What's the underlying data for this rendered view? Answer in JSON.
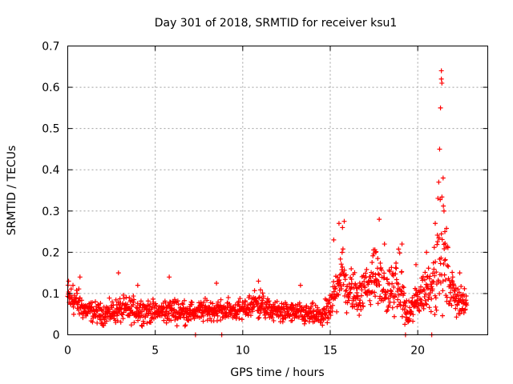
{
  "chart_data": {
    "type": "scatter",
    "title": "Day 301 of 2018, SRMTID for receiver ksu1",
    "xlabel": "GPS time / hours",
    "ylabel": "SRMTID / TECUs",
    "xlim": [
      0,
      24
    ],
    "ylim": [
      0,
      0.7
    ],
    "xticks": [
      0,
      5,
      10,
      15,
      20
    ],
    "yticks": [
      0,
      0.1,
      0.2,
      0.3,
      0.4,
      0.5,
      0.6,
      0.7
    ],
    "xtick_labels": [
      "0",
      "5",
      "10",
      "15",
      "20"
    ],
    "ytick_labels": [
      "0",
      "0.1",
      "0.2",
      "0.3",
      "0.4",
      "0.5",
      "0.6",
      "0.7"
    ],
    "grid": true,
    "marker": "+",
    "colors": {
      "series": "#ff0000",
      "grid": "#a0a0a0",
      "axis": "#000000"
    },
    "series": [
      {
        "name": "SRMTID",
        "profile": [
          [
            0.0,
            0.09,
            0.03
          ],
          [
            0.5,
            0.08,
            0.03
          ],
          [
            1.0,
            0.06,
            0.02
          ],
          [
            2.0,
            0.05,
            0.02
          ],
          [
            3.0,
            0.06,
            0.025
          ],
          [
            4.0,
            0.06,
            0.025
          ],
          [
            5.0,
            0.055,
            0.02
          ],
          [
            6.0,
            0.06,
            0.025
          ],
          [
            7.0,
            0.055,
            0.02
          ],
          [
            8.0,
            0.06,
            0.02
          ],
          [
            9.0,
            0.06,
            0.02
          ],
          [
            10.0,
            0.06,
            0.02
          ],
          [
            10.8,
            0.08,
            0.03
          ],
          [
            11.5,
            0.06,
            0.02
          ],
          [
            12.5,
            0.055,
            0.02
          ],
          [
            13.5,
            0.05,
            0.02
          ],
          [
            14.5,
            0.045,
            0.02
          ],
          [
            15.0,
            0.06,
            0.03
          ],
          [
            15.6,
            0.16,
            0.06
          ],
          [
            16.0,
            0.1,
            0.04
          ],
          [
            16.8,
            0.1,
            0.04
          ],
          [
            17.5,
            0.15,
            0.05
          ],
          [
            18.2,
            0.1,
            0.04
          ],
          [
            19.0,
            0.12,
            0.06
          ],
          [
            19.4,
            0.04,
            0.02
          ],
          [
            20.0,
            0.09,
            0.04
          ],
          [
            20.7,
            0.12,
            0.05
          ],
          [
            21.3,
            0.2,
            0.12
          ],
          [
            21.6,
            0.16,
            0.08
          ],
          [
            22.0,
            0.1,
            0.04
          ],
          [
            22.8,
            0.07,
            0.02
          ]
        ],
        "highlights": [
          [
            0.05,
            0.13
          ],
          [
            0.3,
            0.12
          ],
          [
            0.7,
            0.14
          ],
          [
            2.9,
            0.15
          ],
          [
            4.0,
            0.12
          ],
          [
            5.8,
            0.14
          ],
          [
            8.5,
            0.125
          ],
          [
            10.9,
            0.13
          ],
          [
            13.3,
            0.12
          ],
          [
            15.2,
            0.23
          ],
          [
            15.5,
            0.27
          ],
          [
            15.7,
            0.26
          ],
          [
            15.8,
            0.275
          ],
          [
            16.2,
            0.16
          ],
          [
            17.6,
            0.2
          ],
          [
            17.8,
            0.28
          ],
          [
            18.1,
            0.22
          ],
          [
            19.1,
            0.22
          ],
          [
            19.9,
            0.17
          ],
          [
            20.5,
            0.2
          ],
          [
            21.0,
            0.27
          ],
          [
            21.2,
            0.37
          ],
          [
            21.25,
            0.45
          ],
          [
            21.3,
            0.55
          ],
          [
            21.35,
            0.62
          ],
          [
            21.35,
            0.64
          ],
          [
            21.38,
            0.61
          ],
          [
            21.45,
            0.38
          ],
          [
            21.5,
            0.3
          ],
          [
            21.55,
            0.25
          ],
          [
            22.0,
            0.14
          ],
          [
            22.4,
            0.15
          ]
        ],
        "zero_points": [
          7.3,
          8.8,
          19.3,
          20.8
        ]
      }
    ]
  }
}
